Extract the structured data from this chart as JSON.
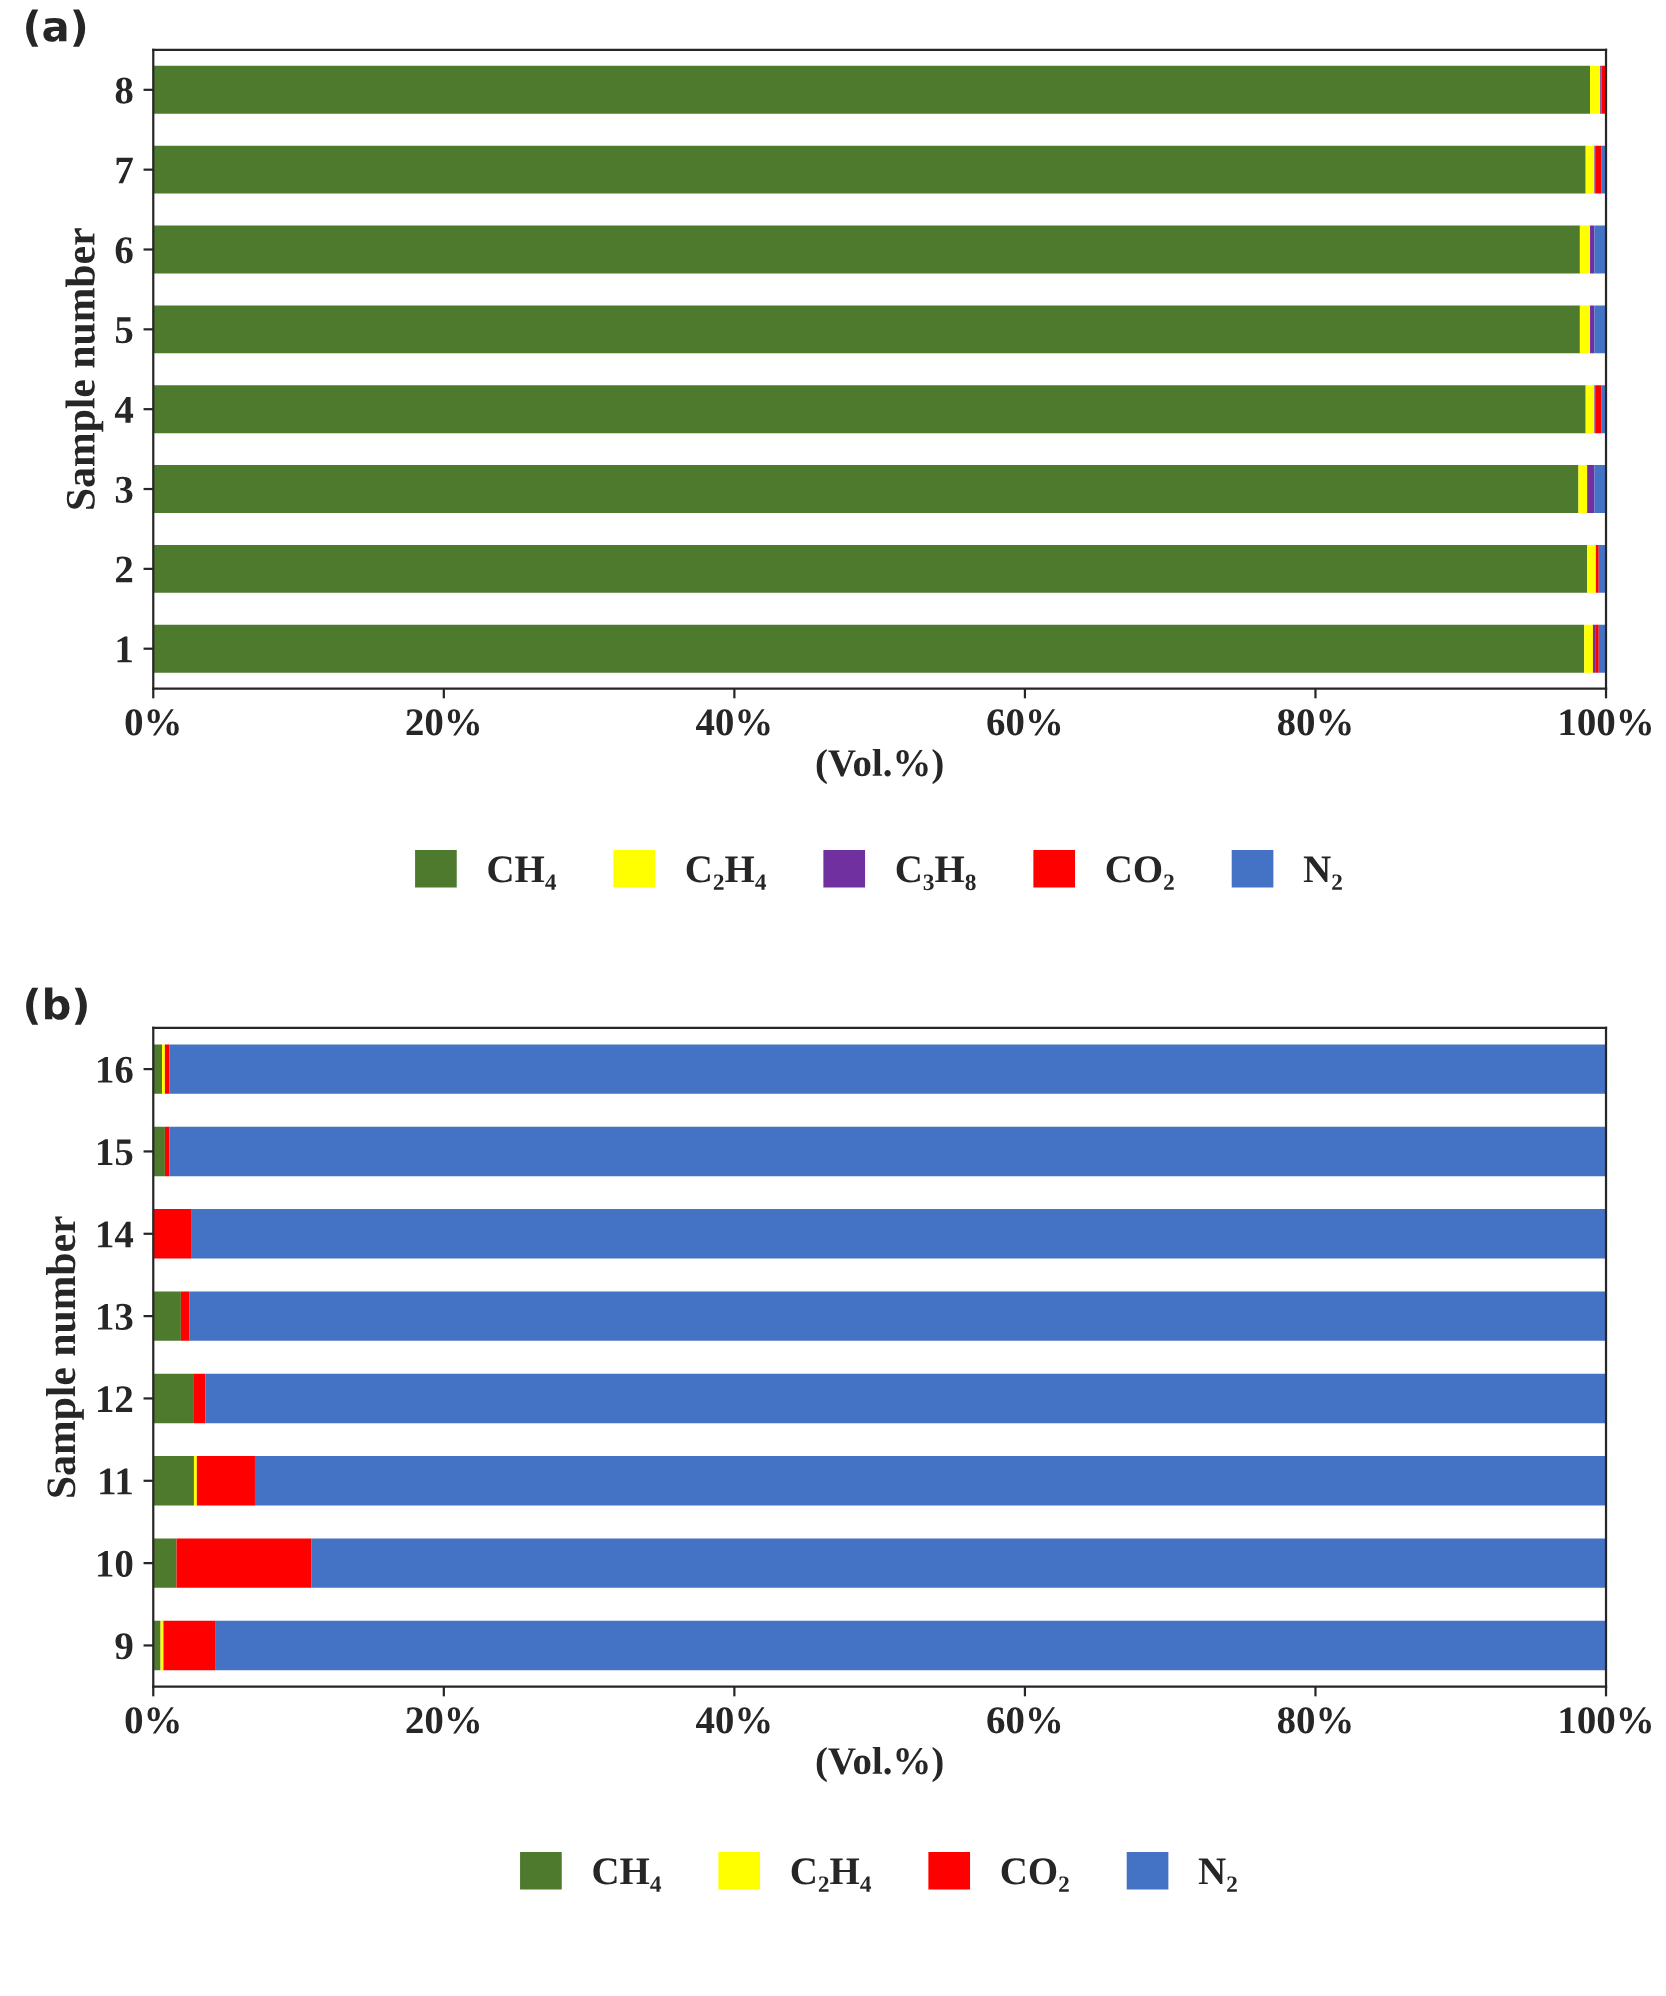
{
  "chart_data": [
    {
      "type": "bar",
      "title": "(a)",
      "orientation": "horizontal",
      "stacked": true,
      "xlabel": "(Vol.%)",
      "ylabel": "Sample number",
      "categories": [
        "8",
        "7",
        "6",
        "5",
        "4",
        "3",
        "2",
        "1"
      ],
      "series": [
        {
          "name": "CH₄",
          "color": "#4e7a2e",
          "values": [
            98.9,
            98.6,
            98.2,
            98.2,
            98.6,
            98.1,
            98.7,
            98.5
          ]
        },
        {
          "name": "C₂H₄",
          "color": "#ffff00",
          "values": [
            0.7,
            0.6,
            0.7,
            0.7,
            0.6,
            0.6,
            0.6,
            0.6
          ]
        },
        {
          "name": "C₃H₈",
          "color": "#7030a0",
          "values": [
            0.1,
            0.1,
            0.3,
            0.3,
            0.1,
            0.5,
            0.0,
            0.2
          ]
        },
        {
          "name": "CO₂",
          "color": "#ff0000",
          "values": [
            0.3,
            0.4,
            0.0,
            0.0,
            0.4,
            0.0,
            0.2,
            0.2
          ]
        },
        {
          "name": "N₂",
          "color": "#4472c4",
          "values": [
            0.0,
            0.3,
            0.8,
            0.8,
            0.3,
            0.8,
            0.5,
            0.5
          ]
        }
      ],
      "xlim": [
        0,
        100
      ],
      "xticks": [
        {
          "value": 0,
          "label": "0%"
        },
        {
          "value": 20,
          "label": "20%"
        },
        {
          "value": 40,
          "label": "40%"
        },
        {
          "value": 60,
          "label": "60%"
        },
        {
          "value": 80,
          "label": "80%"
        },
        {
          "value": 100,
          "label": "100%"
        }
      ],
      "grid": false,
      "legend": "bottom"
    },
    {
      "type": "bar",
      "title": "(b)",
      "orientation": "horizontal",
      "stacked": true,
      "xlabel": "(Vol.%)",
      "ylabel": "Sample number",
      "categories": [
        "16",
        "15",
        "14",
        "13",
        "12",
        "11",
        "10",
        "9"
      ],
      "series": [
        {
          "name": "CH₄",
          "color": "#4e7a2e",
          "values": [
            0.6,
            0.8,
            0.0,
            1.9,
            2.8,
            2.8,
            1.6,
            0.5
          ]
        },
        {
          "name": "C₂H₄",
          "color": "#ffff00",
          "values": [
            0.2,
            0.0,
            0.0,
            0.0,
            0.0,
            0.2,
            0.0,
            0.2
          ]
        },
        {
          "name": "CO₂",
          "color": "#ff0000",
          "values": [
            0.3,
            0.3,
            2.6,
            0.6,
            0.8,
            4.0,
            9.3,
            3.6
          ]
        },
        {
          "name": "N₂",
          "color": "#4472c4",
          "values": [
            98.9,
            98.9,
            97.4,
            97.5,
            96.4,
            93.0,
            89.1,
            95.7
          ]
        }
      ],
      "xlim": [
        0,
        100
      ],
      "xticks": [
        {
          "value": 0,
          "label": "0%"
        },
        {
          "value": 20,
          "label": "20%"
        },
        {
          "value": 40,
          "label": "40%"
        },
        {
          "value": 60,
          "label": "60%"
        },
        {
          "value": 80,
          "label": "80%"
        },
        {
          "value": 100,
          "label": "100%"
        }
      ],
      "grid": false,
      "legend": "bottom"
    }
  ]
}
